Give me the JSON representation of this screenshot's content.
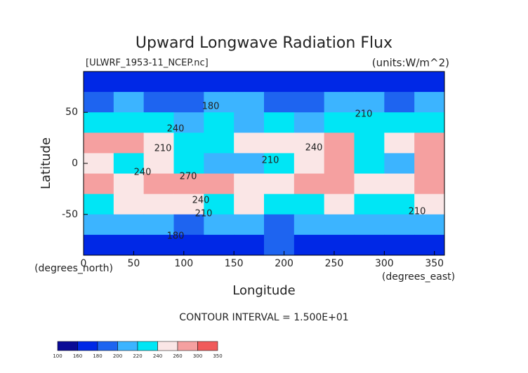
{
  "chart_data": {
    "type": "contour",
    "title": "Upward Longwave Radiation Flux",
    "subtitle_left": "[ULWRF_1953-11_NCEP.nc]",
    "subtitle_right": "(units:W/m^2)",
    "xlabel": "Longitude",
    "ylabel": "Latitude",
    "x_units": "(degrees_east)",
    "y_units": "(degrees_north)",
    "footer": "CONTOUR INTERVAL = 1.500E+01",
    "xlim": [
      0,
      360
    ],
    "ylim": [
      -90,
      90
    ],
    "xticks": [
      0,
      50,
      100,
      150,
      200,
      250,
      300,
      350
    ],
    "yticks": [
      -50,
      0,
      50
    ],
    "x": [
      0,
      30,
      60,
      90,
      120,
      150,
      180,
      210,
      240,
      270,
      300,
      330,
      360
    ],
    "y": [
      90,
      70,
      50,
      30,
      10,
      -10,
      -30,
      -50,
      -70,
      -90
    ],
    "z": [
      [
        165,
        170,
        170,
        175,
        170,
        165,
        170,
        175,
        170,
        170,
        165,
        170
      ],
      [
        195,
        200,
        190,
        195,
        205,
        200,
        195,
        190,
        200,
        210,
        195,
        200
      ],
      [
        225,
        230,
        235,
        215,
        220,
        215,
        225,
        215,
        220,
        230,
        225,
        230
      ],
      [
        265,
        275,
        255,
        235,
        230,
        240,
        245,
        250,
        260,
        235,
        245,
        265
      ],
      [
        250,
        235,
        245,
        225,
        210,
        215,
        225,
        245,
        280,
        235,
        210,
        275
      ],
      [
        265,
        245,
        260,
        265,
        275,
        255,
        250,
        270,
        275,
        255,
        250,
        270
      ],
      [
        235,
        240,
        245,
        240,
        235,
        240,
        230,
        235,
        240,
        235,
        235,
        240
      ],
      [
        200,
        210,
        205,
        195,
        200,
        205,
        195,
        200,
        205,
        200,
        205,
        200
      ],
      [
        175,
        165,
        170,
        175,
        165,
        170,
        180,
        170,
        165,
        175,
        170,
        165
      ]
    ],
    "levels": [
      100,
      160,
      180,
      200,
      220,
      240,
      260,
      300,
      350
    ],
    "colors": [
      "#0a0a96",
      "#0028e6",
      "#1e64f0",
      "#3cb4ff",
      "#00e6f5",
      "#fae6e6",
      "#f5a0a0",
      "#f05a5a",
      "#ff0000"
    ],
    "contour_labels": [
      180,
      210,
      240,
      210,
      240,
      210,
      240,
      270,
      240,
      210,
      210,
      180
    ]
  }
}
